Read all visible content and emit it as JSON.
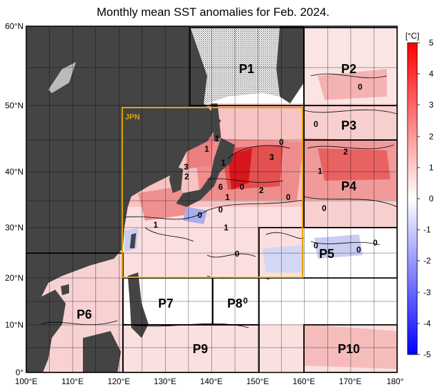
{
  "title": "Monthly mean SST anomalies for Feb. 2024.",
  "map": {
    "lon_ticks": [
      "100°E",
      "110°E",
      "120°E",
      "130°E",
      "140°E",
      "150°E",
      "160°E",
      "170°E",
      "180°"
    ],
    "lat_ticks": [
      "0°",
      "10°N",
      "20°N",
      "30°N",
      "40°N",
      "50°N",
      "60°N"
    ],
    "colors": {
      "land": "#444444",
      "sea_ice": "#e8e8e8",
      "frame": "#000000",
      "jpn_box": "#e3a200",
      "warm_strong": "#d8161c",
      "warm_mid": "#ef7b7b",
      "warm_light": "#f8c6c6",
      "cool_light": "#c9cdf2",
      "cool_mid": "#8c93e6"
    },
    "regions": [
      {
        "id": "P1",
        "label": "P1"
      },
      {
        "id": "P2",
        "label": "P2"
      },
      {
        "id": "P3",
        "label": "P3"
      },
      {
        "id": "P4",
        "label": "P4"
      },
      {
        "id": "P5",
        "label": "P5"
      },
      {
        "id": "P6",
        "label": "P6"
      },
      {
        "id": "P7",
        "label": "P7"
      },
      {
        "id": "P8",
        "label": "P8"
      },
      {
        "id": "P9",
        "label": "P9"
      },
      {
        "id": "P10",
        "label": "P10"
      },
      {
        "id": "JPN",
        "label": "JPN"
      }
    ],
    "contour_labels": [
      "0",
      "1",
      "1",
      "3",
      "2",
      "1",
      "6",
      "0",
      "2",
      "3",
      "0",
      "1",
      "2",
      "0",
      "1",
      "0",
      "0",
      "0",
      "0",
      "1",
      "1",
      "0",
      "0",
      "0",
      "0",
      "0"
    ]
  },
  "colorbar": {
    "unit": "[°C]",
    "ticks": [
      "5",
      "4",
      "3",
      "2",
      "1",
      "0",
      "-1",
      "-2",
      "-3",
      "-4",
      "-5"
    ],
    "range": [
      -5,
      5
    ],
    "colors": [
      "#0000ff",
      "#ffffff",
      "#ff0000"
    ]
  }
}
